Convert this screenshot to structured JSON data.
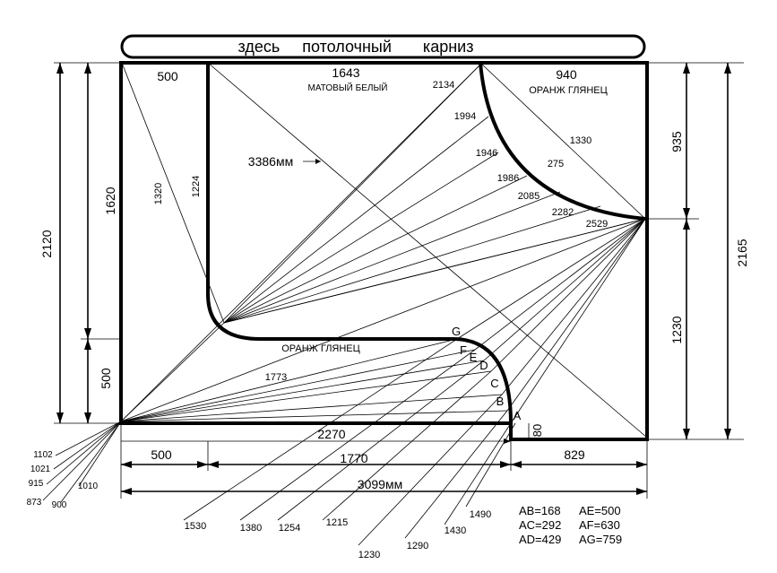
{
  "banner": "здесь     потолочный       карниз",
  "labels": {
    "top_500": "500",
    "top_1643": "1643",
    "matte_white": "МАТОВЫЙ БЕЛЫЙ",
    "top_940": "940",
    "orange_gloss_top": "ОРАНЖ ГЛЯНЕЦ",
    "orange_gloss_mid": "ОРАНЖ ГЛЯНЕЦ",
    "diag_3386": "3386мм",
    "d2134": "2134",
    "d1994": "1994",
    "d1946": "1946",
    "d1986": "1986",
    "d2085": "2085",
    "d2282": "2282",
    "d2529": "2529",
    "d1330": "1330",
    "d275": "275",
    "d1320": "1320",
    "d1224": "1224",
    "d1773": "1773",
    "d2270": "2270",
    "left_2120": "2120",
    "left_1620": "1620",
    "left_500": "500",
    "right_935": "935",
    "right_1230": "1230",
    "right_2165": "2165",
    "v80": "80",
    "bot_500": "500",
    "bot_1770": "1770",
    "bot_829": "829",
    "bot_total": "3099мм",
    "fan_1102": "1102",
    "fan_1021": "1021",
    "fan_915": "915",
    "fan_1010": "1010",
    "fan_873": "873",
    "fan_900": "900",
    "b1530": "1530",
    "b1380": "1380",
    "b1254": "1254",
    "b1215": "1215",
    "b1230": "1230",
    "b1290": "1290",
    "b1430": "1430",
    "b1490": "1490",
    "pA": "A",
    "pB": "B",
    "pC": "C",
    "pD": "D",
    "pE": "E",
    "pF": "F",
    "pG": "G"
  },
  "legend": {
    "ab": "AB=168",
    "ac": "AC=292",
    "ad": "AD=429",
    "ae": "AE=500",
    "af": "AF=630",
    "ag": "AG=759"
  }
}
